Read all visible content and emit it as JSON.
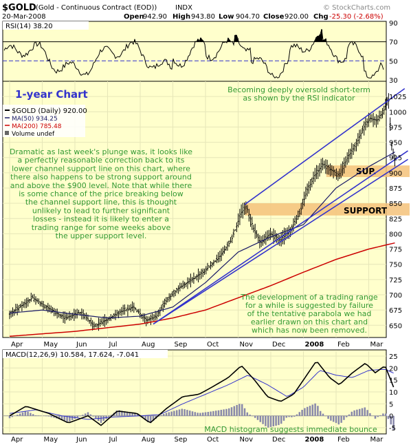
{
  "header": {
    "symbol": "$GOLD",
    "name": "(Gold - Continuous Contract (EOD))",
    "exchange": "INDX",
    "watermark": "© StockCharts.com",
    "date": "20-Mar-2008",
    "quote": {
      "open_label": "Open",
      "open": "942.90",
      "high_label": "High",
      "high": "943.80",
      "low_label": "Low",
      "low": "904.70",
      "close_label": "Close",
      "close": "920.00",
      "chg_label": "Chg",
      "chg": "-25.30 (-2.68%)",
      "chg_color": "#cc0000"
    }
  },
  "colors": {
    "panel_bg": "#ffffcc",
    "channel": "#3333cc",
    "annotation": "#339933",
    "ma50": "#1a1a66",
    "ma200": "#cc0000",
    "rsi_fill": "#000000",
    "support_band": "#f5c27a",
    "histogram": "#8888aa"
  },
  "chart_data": [
    {
      "type": "line",
      "name": "rsi",
      "title": "RSI(14) 38.20",
      "ylim": [
        30,
        90
      ],
      "yticks": [
        30,
        50,
        70,
        90
      ],
      "overbought": 70,
      "oversold": 30,
      "midline": 50,
      "seed": 3,
      "values_note": ""
    },
    {
      "type": "line",
      "name": "price",
      "title": "1-year Chart",
      "legend": [
        "$GOLD (Daily) 920.00",
        "MA(50) 934.25",
        "MA(200) 785.48",
        "Volume undef"
      ],
      "ylim": [
        630,
        1050
      ],
      "yticks": [
        650,
        675,
        700,
        725,
        750,
        775,
        800,
        825,
        850,
        875,
        900,
        925,
        950,
        975,
        1000,
        1025
      ],
      "xlabels": [
        "Apr",
        "May",
        "Jun",
        "Jul",
        "Aug",
        "Sep",
        "Oct",
        "Nov",
        "Dec",
        "2008",
        "Feb",
        "Mar"
      ],
      "bold_xlabel": "2008",
      "monthly_close": [
        {
          "m": 0,
          "v": 668
        },
        {
          "m": 0.7,
          "v": 695
        },
        {
          "m": 1.2,
          "v": 678
        },
        {
          "m": 1.7,
          "v": 662
        },
        {
          "m": 2.2,
          "v": 672
        },
        {
          "m": 2.6,
          "v": 648
        },
        {
          "m": 3.0,
          "v": 660
        },
        {
          "m": 3.4,
          "v": 672
        },
        {
          "m": 3.8,
          "v": 680
        },
        {
          "m": 4.2,
          "v": 658
        },
        {
          "m": 4.5,
          "v": 665
        },
        {
          "m": 4.8,
          "v": 690
        },
        {
          "m": 5.2,
          "v": 712
        },
        {
          "m": 5.6,
          "v": 725
        },
        {
          "m": 6.0,
          "v": 740
        },
        {
          "m": 6.4,
          "v": 760
        },
        {
          "m": 6.8,
          "v": 790
        },
        {
          "m": 7.1,
          "v": 835
        },
        {
          "m": 7.25,
          "v": 845
        },
        {
          "m": 7.5,
          "v": 805
        },
        {
          "m": 7.7,
          "v": 785
        },
        {
          "m": 8.0,
          "v": 800
        },
        {
          "m": 8.3,
          "v": 790
        },
        {
          "m": 8.6,
          "v": 805
        },
        {
          "m": 8.9,
          "v": 835
        },
        {
          "m": 9.1,
          "v": 870
        },
        {
          "m": 9.35,
          "v": 895
        },
        {
          "m": 9.6,
          "v": 915
        },
        {
          "m": 9.85,
          "v": 905
        },
        {
          "m": 10.1,
          "v": 895
        },
        {
          "m": 10.35,
          "v": 925
        },
        {
          "m": 10.6,
          "v": 945
        },
        {
          "m": 10.85,
          "v": 975
        },
        {
          "m": 11.05,
          "v": 990
        },
        {
          "m": 11.25,
          "v": 985
        },
        {
          "m": 11.45,
          "v": 1000
        },
        {
          "m": 11.6,
          "v": 1025
        },
        {
          "m": 11.7,
          "v": 945
        },
        {
          "m": 11.8,
          "v": 920
        }
      ],
      "ma50": [
        {
          "m": 0,
          "v": 670
        },
        {
          "m": 1,
          "v": 675
        },
        {
          "m": 2,
          "v": 668
        },
        {
          "m": 3,
          "v": 662
        },
        {
          "m": 4,
          "v": 665
        },
        {
          "m": 5,
          "v": 680
        },
        {
          "m": 6,
          "v": 720
        },
        {
          "m": 7,
          "v": 770
        },
        {
          "m": 8,
          "v": 795
        },
        {
          "m": 9,
          "v": 815
        },
        {
          "m": 10,
          "v": 875
        },
        {
          "m": 11,
          "v": 910
        },
        {
          "m": 11.8,
          "v": 934
        }
      ],
      "ma200": [
        {
          "m": 0,
          "v": 632
        },
        {
          "m": 2,
          "v": 640
        },
        {
          "m": 4,
          "v": 652
        },
        {
          "m": 5,
          "v": 662
        },
        {
          "m": 6,
          "v": 675
        },
        {
          "m": 7,
          "v": 695
        },
        {
          "m": 8,
          "v": 715
        },
        {
          "m": 9,
          "v": 737
        },
        {
          "m": 10,
          "v": 758
        },
        {
          "m": 11,
          "v": 775
        },
        {
          "m": 11.8,
          "v": 785
        }
      ],
      "channel_upper": [
        {
          "m": 7.2,
          "v": 848
        },
        {
          "m": 12.1,
          "v": 1038
        }
      ],
      "channel_lower": [
        {
          "m": 4.4,
          "v": 652
        },
        {
          "m": 12.2,
          "v": 936
        }
      ],
      "trendline_lower2": [
        {
          "m": 4.4,
          "v": 652
        },
        {
          "m": 12.2,
          "v": 922
        }
      ],
      "support_bands": [
        {
          "label": "SUP.",
          "low": 893,
          "high": 912,
          "from_m": 9.7
        },
        {
          "label": "SUPPORT",
          "low": 830,
          "high": 850,
          "from_m": 7.2
        }
      ],
      "annotations": [
        "Becoming deeply oversold short-term\nas shown by the RSI indicator",
        "Dramatic as last week's plunge was, it looks like\na perfectly reasonable correction back to its\nlower channel support line on this chart, where\nthere also happens to be strong support around\nand above the $900 level. Note that while there\nis some chance of the price breaking below\nthe channel support line, this is thought\nunlikely to lead to further significant\nlosses - instead it is likely to enter a\ntrading range for some weeks above\nthe upper support level.",
        "The development of a trading range\nfor a while is suggested by failure\nof the tentative parabola we had\nearlier drawn on this chart and\nwhich has now been removed."
      ]
    },
    {
      "type": "line",
      "name": "macd",
      "title": "MACD(12,26,9) 10.584, 17.624, -7.041",
      "ylim": [
        -7,
        27
      ],
      "yticks": [
        -5,
        0,
        5,
        10,
        15,
        20,
        25
      ],
      "macd": [
        {
          "m": 0,
          "v": 0
        },
        {
          "m": 0.5,
          "v": 4
        },
        {
          "m": 1.2,
          "v": 1
        },
        {
          "m": 1.8,
          "v": -3
        },
        {
          "m": 2.4,
          "v": 0
        },
        {
          "m": 2.8,
          "v": -4
        },
        {
          "m": 3.3,
          "v": 2
        },
        {
          "m": 3.9,
          "v": 1
        },
        {
          "m": 4.3,
          "v": -3
        },
        {
          "m": 4.8,
          "v": 3
        },
        {
          "m": 5.3,
          "v": 8
        },
        {
          "m": 5.8,
          "v": 9
        },
        {
          "m": 6.2,
          "v": 12
        },
        {
          "m": 6.7,
          "v": 16
        },
        {
          "m": 7.1,
          "v": 21
        },
        {
          "m": 7.5,
          "v": 15
        },
        {
          "m": 7.9,
          "v": 8
        },
        {
          "m": 8.3,
          "v": 6
        },
        {
          "m": 8.7,
          "v": 9
        },
        {
          "m": 9.1,
          "v": 17
        },
        {
          "m": 9.4,
          "v": 23
        },
        {
          "m": 9.8,
          "v": 16
        },
        {
          "m": 10.1,
          "v": 13
        },
        {
          "m": 10.5,
          "v": 18
        },
        {
          "m": 10.9,
          "v": 22
        },
        {
          "m": 11.2,
          "v": 18
        },
        {
          "m": 11.5,
          "v": 21
        },
        {
          "m": 11.8,
          "v": 10.6
        }
      ],
      "signal": [
        {
          "m": 0,
          "v": 1
        },
        {
          "m": 0.8,
          "v": 2.5
        },
        {
          "m": 1.6,
          "v": 0
        },
        {
          "m": 2.4,
          "v": -1.5
        },
        {
          "m": 3.2,
          "v": -0.5
        },
        {
          "m": 4.0,
          "v": 0
        },
        {
          "m": 4.6,
          "v": 0.5
        },
        {
          "m": 5.3,
          "v": 5
        },
        {
          "m": 6.0,
          "v": 9
        },
        {
          "m": 6.7,
          "v": 13
        },
        {
          "m": 7.3,
          "v": 17
        },
        {
          "m": 7.9,
          "v": 13
        },
        {
          "m": 8.5,
          "v": 8
        },
        {
          "m": 9.0,
          "v": 12
        },
        {
          "m": 9.5,
          "v": 19
        },
        {
          "m": 10.0,
          "v": 17
        },
        {
          "m": 10.5,
          "v": 16
        },
        {
          "m": 11.0,
          "v": 19
        },
        {
          "m": 11.5,
          "v": 19.5
        },
        {
          "m": 11.8,
          "v": 17.6
        }
      ],
      "xlabels": [
        "Apr",
        "May",
        "Jun",
        "Jul",
        "Aug",
        "Sep",
        "Oct",
        "Nov",
        "Dec",
        "2008",
        "Feb",
        "Mar"
      ],
      "bold_xlabel": "2008",
      "annotation": "MACD histogram suggests immediate bounce"
    }
  ]
}
